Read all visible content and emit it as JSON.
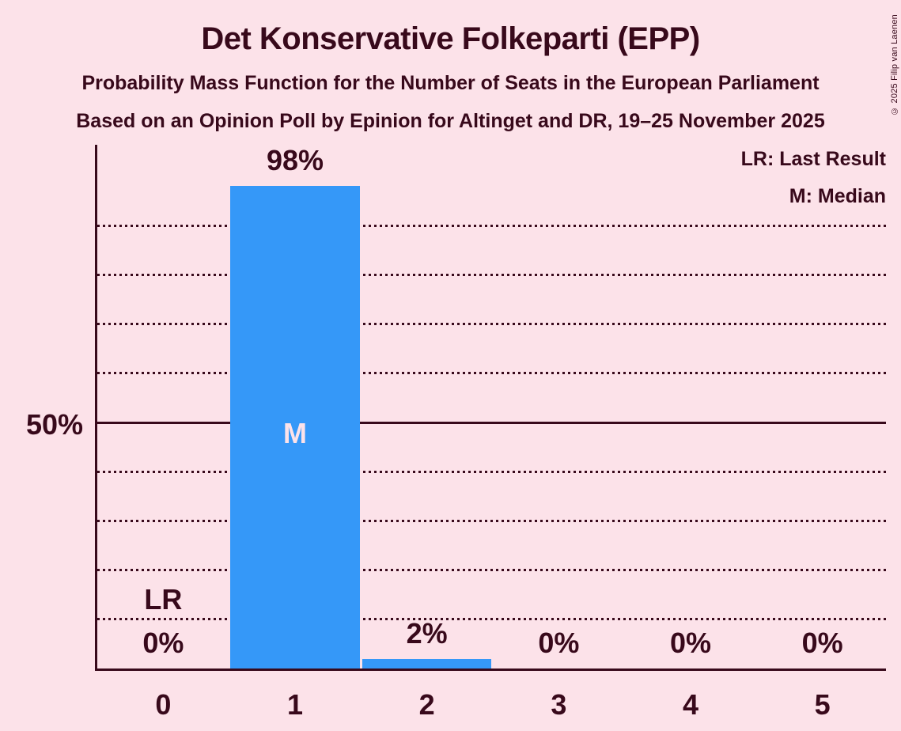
{
  "title": "Det Konservative Folkeparti (EPP)",
  "subtitle1": "Probability Mass Function for the Number of Seats in the European Parliament",
  "subtitle2": "Based on an Opinion Poll by Epinion for Altinget and DR, 19–25 November 2025",
  "copyright": "© 2025 Filip van Laenen",
  "legend": {
    "last_result": "LR: Last Result",
    "median": "M: Median"
  },
  "y_axis": {
    "label_50": "50%"
  },
  "markers": {
    "last_result_label": "LR",
    "median_label": "M"
  },
  "colors": {
    "background": "#FCE2E9",
    "text": "#38091B",
    "bar": "#3598F8"
  },
  "chart_data": {
    "type": "bar",
    "title": "Det Konservative Folkeparti (EPP)",
    "subtitle": "Probability Mass Function for the Number of Seats in the European Parliament",
    "source": "Based on an Opinion Poll by Epinion for Altinget and DR, 19–25 November 2025",
    "categories": [
      "0",
      "1",
      "2",
      "3",
      "4",
      "5"
    ],
    "values": [
      0,
      98,
      2,
      0,
      0,
      0
    ],
    "value_labels": [
      "0%",
      "98%",
      "2%",
      "0%",
      "0%",
      "0%"
    ],
    "xlabel": "",
    "ylabel": "",
    "ylim": [
      0,
      100
    ],
    "gridlines_pct": [
      10,
      20,
      30,
      40,
      50,
      60,
      70,
      80,
      90
    ],
    "solid_line_pct": 50,
    "grid_style": "dotted",
    "legend_position": "top-right",
    "median_category": "1",
    "last_result_category": "0"
  }
}
